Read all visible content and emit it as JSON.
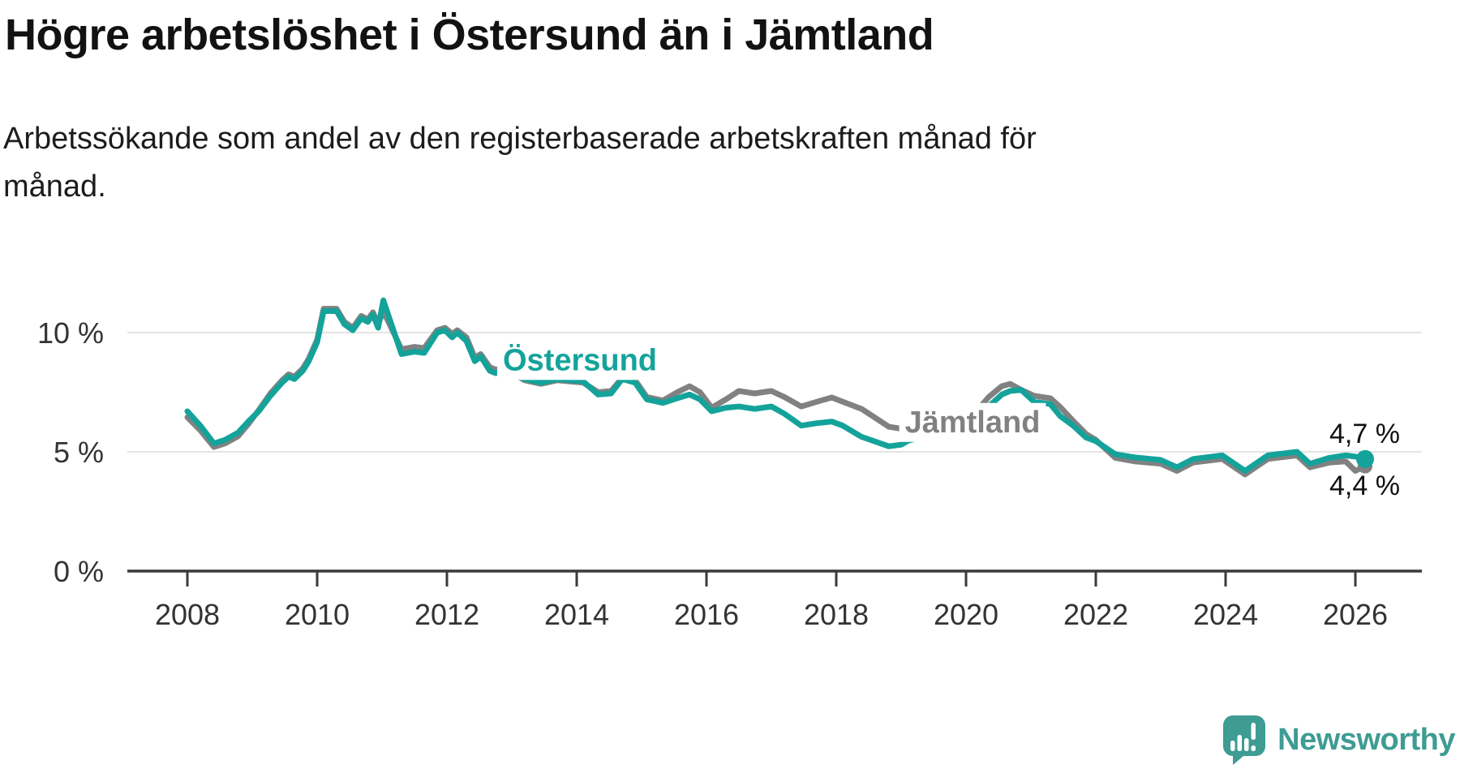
{
  "header": {
    "title": "Högre arbetslöshet i Östersund än i Jämtland",
    "subtitle_line1": "Arbetssökande som andel av den registerbaserade arbetskraften månad för",
    "subtitle_line2": "månad."
  },
  "colors": {
    "ostersund": "#14a39a",
    "jamtland": "#818181",
    "grid": "#e4e4e4",
    "axis": "#3a3a3a",
    "tick_text": "#333333",
    "annotation_text": "#111111",
    "logo_teal": "#3e9c93"
  },
  "chart_data": {
    "type": "line",
    "title": "Högre arbetslöshet i Östersund än i Jämtland",
    "subtitle": "Arbetssökande som andel av den registerbaserade arbetskraften månad för månad.",
    "xlabel": "",
    "ylabel": "",
    "grid": "horizontal",
    "legend_position": "inline-labels",
    "xlim": [
      2007.9,
      2026.6
    ],
    "ylim": [
      0,
      11.8
    ],
    "x": [
      2008.0,
      2008.2,
      2008.41,
      2008.58,
      2008.78,
      2008.95,
      2009.1,
      2009.28,
      2009.46,
      2009.56,
      2009.65,
      2009.78,
      2009.87,
      2010.0,
      2010.1,
      2010.3,
      2010.42,
      2010.55,
      2010.68,
      2010.78,
      2010.86,
      2010.94,
      2011.02,
      2011.3,
      2011.5,
      2011.65,
      2011.85,
      2011.97,
      2012.08,
      2012.16,
      2012.3,
      2012.43,
      2012.52,
      2012.66,
      2012.75,
      2012.88,
      2013.0,
      2013.2,
      2013.45,
      2013.7,
      2013.9,
      2014.1,
      2014.33,
      2014.53,
      2014.7,
      2014.9,
      2015.08,
      2015.33,
      2015.55,
      2015.74,
      2015.9,
      2016.08,
      2016.3,
      2016.5,
      2016.74,
      2017.0,
      2017.2,
      2017.46,
      2017.7,
      2017.93,
      2018.1,
      2018.39,
      2018.56,
      2018.81,
      2019.0,
      2019.11,
      2019.45,
      2019.7,
      2019.9,
      2020.1,
      2020.35,
      2020.55,
      2020.68,
      2020.85,
      2021.05,
      2021.3,
      2021.45,
      2021.65,
      2021.85,
      2022.0,
      2022.3,
      2022.6,
      2023.0,
      2023.25,
      2023.5,
      2023.95,
      2024.3,
      2024.65,
      2025.1,
      2025.3,
      2025.6,
      2025.85,
      2026.0,
      2026.15
    ],
    "series": [
      {
        "name": "Östersund",
        "color_key": "ostersund",
        "end_label": "4,7 %",
        "end_value": 4.7,
        "end_dot_radius": 11,
        "label_anchor": {
          "x": 2014.05,
          "y": 8.9
        },
        "values": [
          6.7,
          6.1,
          5.35,
          5.5,
          5.8,
          6.3,
          6.7,
          7.35,
          7.9,
          8.15,
          8.05,
          8.4,
          8.8,
          9.6,
          10.9,
          10.9,
          10.35,
          10.1,
          10.6,
          10.45,
          10.75,
          10.2,
          11.35,
          9.1,
          9.2,
          9.15,
          10.0,
          10.1,
          9.8,
          10.0,
          9.65,
          8.8,
          9.0,
          8.4,
          8.3,
          8.4,
          8.35,
          8.05,
          7.9,
          8.05,
          8.0,
          7.95,
          7.4,
          7.45,
          8.05,
          7.9,
          7.2,
          7.05,
          7.25,
          7.4,
          7.2,
          6.7,
          6.85,
          6.9,
          6.8,
          6.9,
          6.6,
          6.1,
          6.2,
          6.27,
          6.1,
          5.63,
          5.47,
          5.23,
          5.3,
          5.47,
          5.7,
          5.6,
          5.8,
          6.2,
          6.9,
          7.4,
          7.55,
          7.6,
          7.1,
          7.0,
          6.5,
          6.1,
          5.6,
          5.45,
          4.9,
          4.77,
          4.66,
          4.35,
          4.7,
          4.85,
          4.2,
          4.85,
          5.0,
          4.5,
          4.75,
          4.85,
          4.8,
          4.7
        ]
      },
      {
        "name": "Jämtland",
        "color_key": "jamtland",
        "end_label": "4,4 %",
        "end_value": 4.4,
        "end_dot_radius": 9,
        "label_anchor": {
          "x": 2020.1,
          "y": 6.3
        },
        "values": [
          6.45,
          5.9,
          5.2,
          5.35,
          5.65,
          6.2,
          6.75,
          7.45,
          8.0,
          8.25,
          8.15,
          8.5,
          8.9,
          9.7,
          11.0,
          11.0,
          10.45,
          10.2,
          10.7,
          10.55,
          10.85,
          10.35,
          10.9,
          9.3,
          9.4,
          9.35,
          10.1,
          10.2,
          9.95,
          10.1,
          9.8,
          8.95,
          9.1,
          8.55,
          8.45,
          8.5,
          8.3,
          8.0,
          7.85,
          8.0,
          7.95,
          7.9,
          7.5,
          7.55,
          8.1,
          8.0,
          7.3,
          7.15,
          7.5,
          7.75,
          7.5,
          6.85,
          7.2,
          7.55,
          7.45,
          7.55,
          7.3,
          6.9,
          7.1,
          7.28,
          7.1,
          6.8,
          6.5,
          6.05,
          5.97,
          6.0,
          6.0,
          5.95,
          6.1,
          6.5,
          7.3,
          7.75,
          7.85,
          7.6,
          7.35,
          7.25,
          6.88,
          6.3,
          5.75,
          5.5,
          4.75,
          4.6,
          4.5,
          4.2,
          4.55,
          4.7,
          4.05,
          4.7,
          4.85,
          4.35,
          4.55,
          4.6,
          4.2,
          4.4
        ]
      }
    ],
    "y_ticks": [
      {
        "value": 0,
        "label": "0 %"
      },
      {
        "value": 5,
        "label": "5 %"
      },
      {
        "value": 10,
        "label": "10 %"
      }
    ],
    "x_ticks": [
      {
        "value": 2008,
        "label": "2008"
      },
      {
        "value": 2010,
        "label": "2010"
      },
      {
        "value": 2012,
        "label": "2012"
      },
      {
        "value": 2014,
        "label": "2014"
      },
      {
        "value": 2016,
        "label": "2016"
      },
      {
        "value": 2018,
        "label": "2018"
      },
      {
        "value": 2020,
        "label": "2020"
      },
      {
        "value": 2022,
        "label": "2022"
      },
      {
        "value": 2024,
        "label": "2024"
      },
      {
        "value": 2026,
        "label": "2026"
      }
    ],
    "annotations": [
      {
        "text": "4,7 %",
        "x": 2025.6,
        "y": 5.37
      },
      {
        "text": "4,4 %",
        "x": 2025.6,
        "y": 3.2
      }
    ]
  },
  "footer": {
    "brand": "Newsworthy",
    "logo_icon": "speech-bubble-bar-chart"
  }
}
